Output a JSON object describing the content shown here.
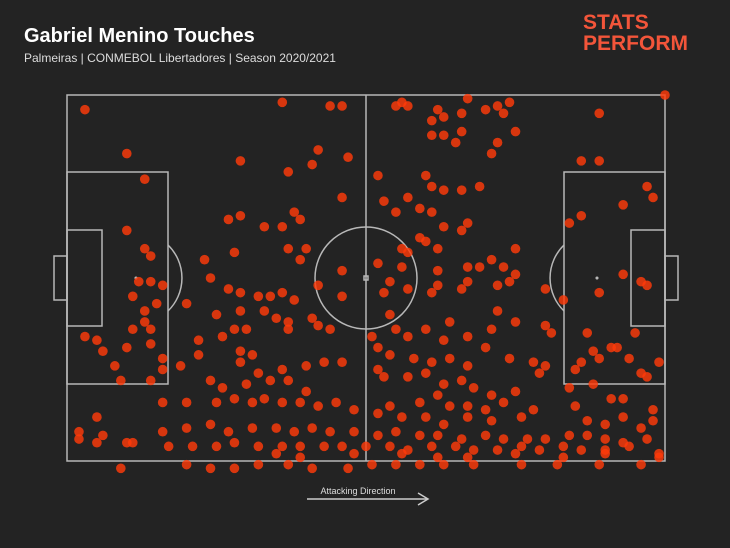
{
  "chart_data": {
    "type": "scatter",
    "title": "Gabriel Menino Touches",
    "subtitle": "Palmeiras | CONMEBOL Libertadores | Season 2020/2021",
    "logo": [
      "STATS",
      "PERFORM"
    ],
    "annotation": "Attacking Direction",
    "color": "#ff3a0a",
    "xlim": [
      0,
      100
    ],
    "ylim": [
      100,
      0
    ],
    "x": [
      3,
      36,
      44,
      46,
      55,
      56,
      57,
      62,
      67,
      72,
      74,
      89,
      100,
      61,
      63,
      66,
      70,
      73,
      75,
      72,
      71,
      66,
      63,
      61,
      65,
      10,
      29,
      42,
      47,
      41,
      86,
      89,
      13,
      37,
      52,
      60,
      61,
      63,
      66,
      69,
      97,
      98,
      93,
      86,
      84,
      46,
      53,
      57,
      55,
      59,
      61,
      63,
      66,
      67,
      38,
      39,
      29,
      27,
      33,
      36,
      10,
      37,
      40,
      28,
      23,
      13,
      14,
      56,
      57,
      59,
      60,
      62,
      75,
      71,
      73,
      56,
      52,
      62,
      67,
      69,
      66,
      67,
      72,
      74,
      75,
      62,
      61,
      57,
      54,
      53,
      46,
      46,
      42,
      39,
      24,
      27,
      29,
      32,
      34,
      36,
      38,
      12,
      14,
      16,
      20,
      93,
      96,
      89,
      80,
      83,
      97,
      92,
      11,
      13,
      15,
      25,
      29,
      33,
      35,
      37,
      41,
      44,
      42,
      37,
      30,
      28,
      26,
      22,
      11,
      13,
      14,
      14,
      3,
      5,
      6,
      10,
      54,
      55,
      57,
      60,
      63,
      64,
      67,
      71,
      72,
      75,
      80,
      81,
      87,
      88,
      91,
      95,
      51,
      52,
      54,
      58,
      61,
      64,
      67,
      70,
      74,
      78,
      80,
      85,
      86,
      89,
      94,
      99,
      97,
      96,
      16,
      19,
      22,
      29,
      31,
      29,
      32,
      36,
      40,
      43,
      46,
      8,
      9,
      14,
      16,
      24,
      26,
      30,
      34,
      37,
      40,
      33,
      52,
      53,
      57,
      60,
      63,
      66,
      68,
      71,
      75,
      79,
      84,
      88,
      91,
      93,
      98,
      16,
      20,
      25,
      28,
      31,
      36,
      39,
      42,
      45,
      48,
      54,
      59,
      62,
      64,
      67,
      70,
      73,
      52,
      56,
      60,
      63,
      67,
      71,
      76,
      78,
      85,
      87,
      90,
      93,
      96,
      98,
      5,
      2,
      6,
      10,
      16,
      20,
      24,
      27,
      31,
      35,
      38,
      41,
      44,
      48,
      52,
      55,
      59,
      62,
      66,
      70,
      73,
      77,
      80,
      84,
      87,
      90,
      93,
      97,
      2,
      5,
      11,
      17,
      21,
      25,
      28,
      32,
      36,
      39,
      43,
      46,
      50,
      54,
      57,
      61,
      65,
      68,
      72,
      76,
      79,
      83,
      86,
      90,
      94,
      99,
      99,
      20,
      24,
      28,
      32,
      37,
      41,
      47,
      51,
      55,
      59,
      63,
      68,
      76,
      82,
      89,
      96,
      9,
      35,
      39,
      48,
      56,
      62,
      67,
      75,
      83,
      90
    ],
    "values": [
      4,
      2,
      3,
      3,
      3,
      2,
      3,
      4,
      1,
      3,
      2,
      5,
      0,
      7,
      6,
      5,
      4,
      5,
      10,
      13,
      16,
      10,
      11,
      11,
      13,
      16,
      18,
      15,
      17,
      19,
      18,
      18,
      23,
      21,
      22,
      22,
      25,
      26,
      26,
      25,
      25,
      28,
      30,
      33,
      35,
      28,
      29,
      28,
      32,
      31,
      32,
      36,
      37,
      35,
      32,
      34,
      33,
      34,
      36,
      36,
      37,
      42,
      42,
      43,
      45,
      42,
      44,
      42,
      43,
      39,
      40,
      42,
      42,
      45,
      47,
      47,
      46,
      48,
      47,
      47,
      53,
      51,
      52,
      51,
      49,
      52,
      54,
      53,
      51,
      54,
      48,
      55,
      52,
      45,
      50,
      53,
      54,
      55,
      55,
      54,
      56,
      51,
      51,
      52,
      57,
      49,
      51,
      54,
      53,
      56,
      52,
      69,
      55,
      59,
      57,
      60,
      59,
      59,
      61,
      62,
      61,
      64,
      63,
      64,
      64,
      64,
      66,
      67,
      64,
      62,
      64,
      68,
      66,
      67,
      70,
      69,
      60,
      64,
      66,
      64,
      67,
      62,
      66,
      64,
      59,
      62,
      63,
      65,
      65,
      70,
      69,
      65,
      66,
      69,
      71,
      72,
      73,
      72,
      74,
      69,
      72,
      73,
      74,
      75,
      73,
      72,
      72,
      73,
      77,
      76,
      72,
      74,
      71,
      70,
      71,
      73,
      76,
      75,
      74,
      73,
      73,
      74,
      78,
      78,
      75,
      78,
      80,
      79,
      78,
      78,
      81,
      83,
      75,
      77,
      77,
      76,
      79,
      78,
      80,
      82,
      81,
      76,
      80,
      79,
      83,
      83,
      86,
      84,
      84,
      84,
      83,
      84,
      84,
      84,
      85,
      84,
      86,
      85,
      84,
      82,
      85,
      85,
      86,
      84,
      87,
      88,
      88,
      90,
      88,
      89,
      88,
      86,
      85,
      89,
      90,
      88,
      91,
      89,
      88,
      92,
      93,
      95,
      92,
      91,
      90,
      92,
      91,
      91,
      92,
      91,
      92,
      92,
      93,
      92,
      93,
      93,
      94,
      93,
      94,
      94,
      94,
      93,
      93,
      94,
      95,
      94,
      94,
      95,
      95,
      96,
      96,
      96,
      95,
      96,
      96,
      96,
      96,
      96,
      96,
      96,
      97,
      96,
      96,
      97,
      97,
      96,
      97,
      96,
      97,
      97,
      96,
      98,
      99,
      101,
      102,
      102,
      101,
      101,
      102,
      102,
      101,
      101,
      101,
      101,
      101,
      101,
      101,
      101,
      101,
      102,
      98,
      99,
      98,
      98,
      99,
      99,
      98,
      99,
      98
    ]
  }
}
